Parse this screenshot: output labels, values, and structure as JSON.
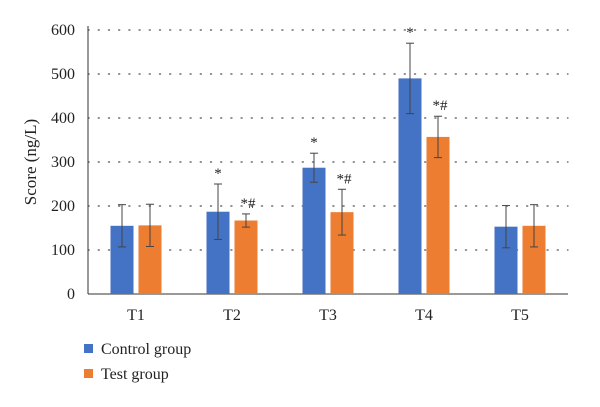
{
  "chart_data": {
    "type": "bar",
    "categories": [
      "T1",
      "T2",
      "T3",
      "T4",
      "T5"
    ],
    "ylabel": "Score (ng/L)",
    "xlabel": "",
    "ylim": [
      0,
      600
    ],
    "yticks": [
      "0",
      "100",
      "200",
      "300",
      "400",
      "500",
      "600"
    ],
    "grid": "horizontal-dotted",
    "legend_placement": "bottom-left",
    "series": [
      {
        "name": "Control group",
        "color": "#4472C4",
        "values": [
          155,
          187,
          287,
          490,
          153
        ],
        "errors": [
          48,
          63,
          33,
          80,
          48
        ],
        "annotations": [
          "",
          "*",
          "*",
          "*",
          ""
        ]
      },
      {
        "name": "Test group",
        "color": "#ED7D31",
        "values": [
          156,
          167,
          186,
          357,
          155
        ],
        "errors": [
          48,
          15,
          52,
          47,
          48
        ],
        "annotations": [
          "",
          "*#",
          "*#",
          "*#",
          ""
        ]
      }
    ]
  }
}
